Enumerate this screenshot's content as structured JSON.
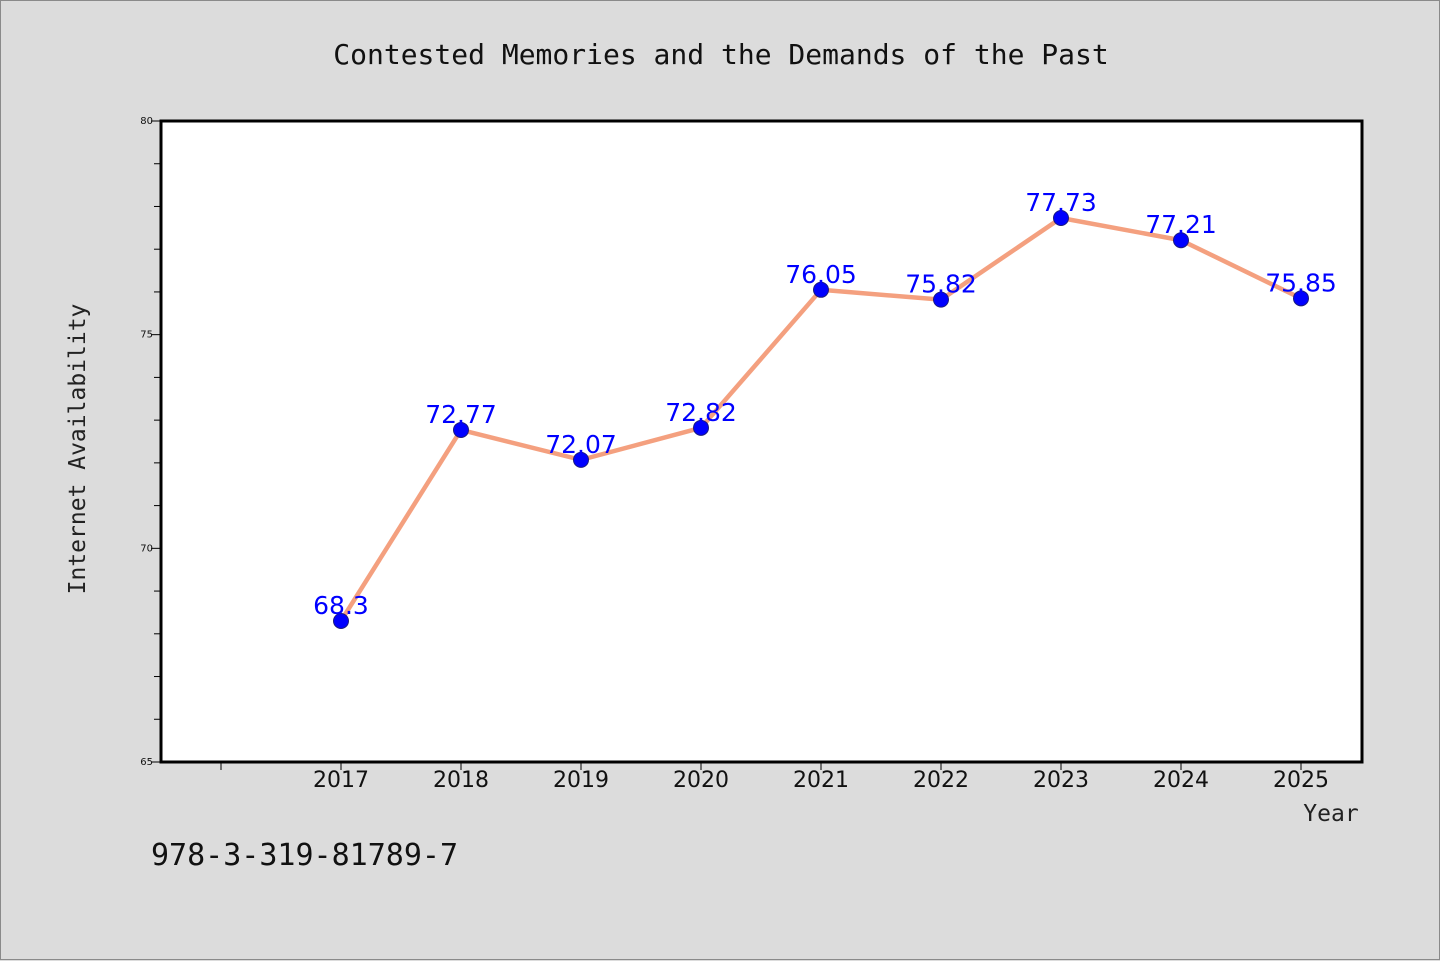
{
  "chart_data": {
    "type": "line",
    "title": "Contested Memories and the Demands of the Past",
    "xlabel": "Year",
    "ylabel": "Internet Availability",
    "categories": [
      "2017",
      "2018",
      "2019",
      "2020",
      "2021",
      "2022",
      "2023",
      "2024",
      "2025"
    ],
    "series": [
      {
        "values": [
          68.3,
          72.77,
          72.07,
          72.82,
          76.05,
          75.82,
          77.73,
          77.21,
          75.85
        ],
        "labels": [
          "68.3",
          "72.77",
          "72.07",
          "72.82",
          "76.05",
          "75.82",
          "77.73",
          "77.21",
          "75.85"
        ]
      }
    ],
    "ylim": [
      65,
      80
    ],
    "yticks": [
      "65",
      "70",
      "75",
      "80"
    ],
    "grid": false,
    "legend": "none",
    "colors": {
      "line": "#f4a07f",
      "marker": "#0000ff",
      "marker_edge": "#1a1a80",
      "label": "#0000ff",
      "plot_bg": "#ffffff",
      "page_bg": "#dcdcdc"
    }
  },
  "annotation": {
    "text": "978-3-319-81789-7"
  }
}
